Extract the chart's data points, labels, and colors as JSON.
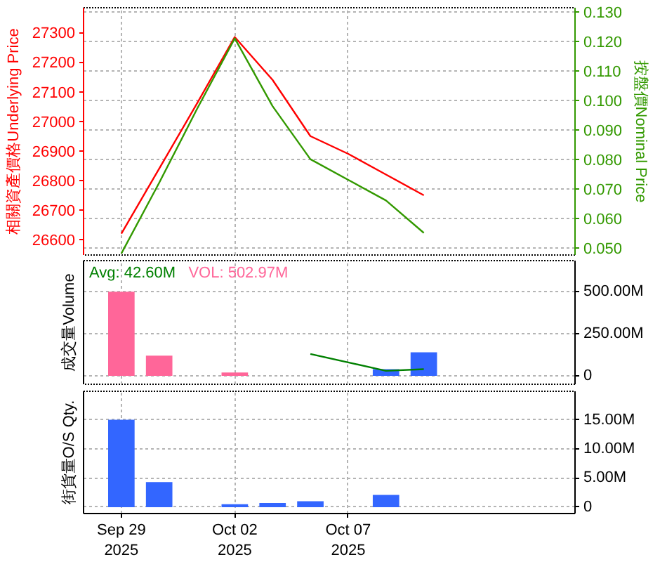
{
  "chart_data": [
    {
      "type": "line",
      "categories": [
        null,
        null,
        null,
        null,
        null,
        null,
        null,
        null,
        null,
        null,
        null,
        null
      ],
      "ylabel": "相關資產價格Underlying Price",
      "y2label": "按盤價Nominal Price",
      "ylim": [
        26548,
        27384
      ],
      "yticks": [
        26600,
        26700,
        26800,
        26900,
        27000,
        27100,
        27200,
        27300
      ],
      "y2lim": [
        0.0475,
        0.1314
      ],
      "y2ticks": [
        {
          "value": 0.05,
          "label": "0.050"
        },
        {
          "value": 0.06,
          "label": "0.060"
        },
        {
          "value": 0.07,
          "label": "0.070"
        },
        {
          "value": 0.08,
          "label": "0.080"
        },
        {
          "value": 0.09,
          "label": "0.090"
        },
        {
          "value": 0.1,
          "label": "0.100"
        },
        {
          "value": 0.11,
          "label": "0.110"
        },
        {
          "value": 0.12,
          "label": "0.120"
        },
        {
          "value": 0.13,
          "label": "0.130"
        }
      ],
      "series": [
        {
          "color": "#ff0000",
          "values": [
            26620,
            26840,
            27060,
            27285,
            27140,
            26950,
            26890,
            26820,
            26750,
            null,
            null,
            null
          ]
        },
        {
          "color": "#339900",
          "axis": "y2",
          "values": [
            0.048,
            0.072,
            0.097,
            0.121,
            0.098,
            0.08,
            0.073,
            0.066,
            0.055,
            null,
            null,
            null
          ]
        }
      ],
      "grid": true,
      "tick_labels": "y"
    },
    {
      "type": "bar",
      "categories": [
        null,
        null,
        null,
        null,
        null,
        null,
        null,
        null,
        null,
        null,
        null,
        null
      ],
      "ylabel": "成交量Volume",
      "y2lim": [
        -50,
        685
      ],
      "y2ticks": [
        0,
        {
          "value": 250,
          "label": "250.00M"
        },
        {
          "value": 500,
          "label": "500.00M"
        }
      ],
      "series": [
        {
          "name": "Avg: 42.60M",
          "type": "line",
          "color": "#008000",
          "axis": "y2",
          "values": [
            null,
            null,
            null,
            null,
            null,
            130,
            80,
            30,
            40,
            null,
            null,
            null
          ]
        },
        {
          "name": "VOL: 502.97M",
          "type": "bar",
          "color": "#ff6699",
          "axis": "y2",
          "colors": [
            "#ff6699",
            "#ff6699",
            null,
            "#ff6699",
            null,
            null,
            null,
            "#3366ff",
            "#3366ff",
            null,
            null,
            null
          ],
          "values": [
            500,
            120,
            null,
            20,
            null,
            null,
            null,
            40,
            140,
            null,
            null,
            null
          ]
        }
      ],
      "legend": "top left",
      "grid": true,
      "tick_labels": "y"
    },
    {
      "type": "bar",
      "categories": [
        "Sep 29\n2025",
        null,
        null,
        "Oct 02\n2025",
        null,
        null,
        "Oct 07\n2025",
        null,
        null,
        null,
        null,
        null
      ],
      "ylabel": "街貨量O/S Qty.",
      "y2lim": [
        -1.1,
        19.9
      ],
      "y2ticks": [
        0,
        {
          "value": 5,
          "label": "5.00M"
        },
        {
          "value": 10,
          "label": "10.00M"
        },
        {
          "value": 15,
          "label": "15.00M"
        }
      ],
      "series": [
        {
          "color": "#3366ff",
          "axis": "y2",
          "values": [
            15.0,
            4.3,
            null,
            0.5,
            0.7,
            1.0,
            null,
            2.1,
            null,
            null,
            null,
            null
          ]
        }
      ],
      "grid": true
    }
  ]
}
